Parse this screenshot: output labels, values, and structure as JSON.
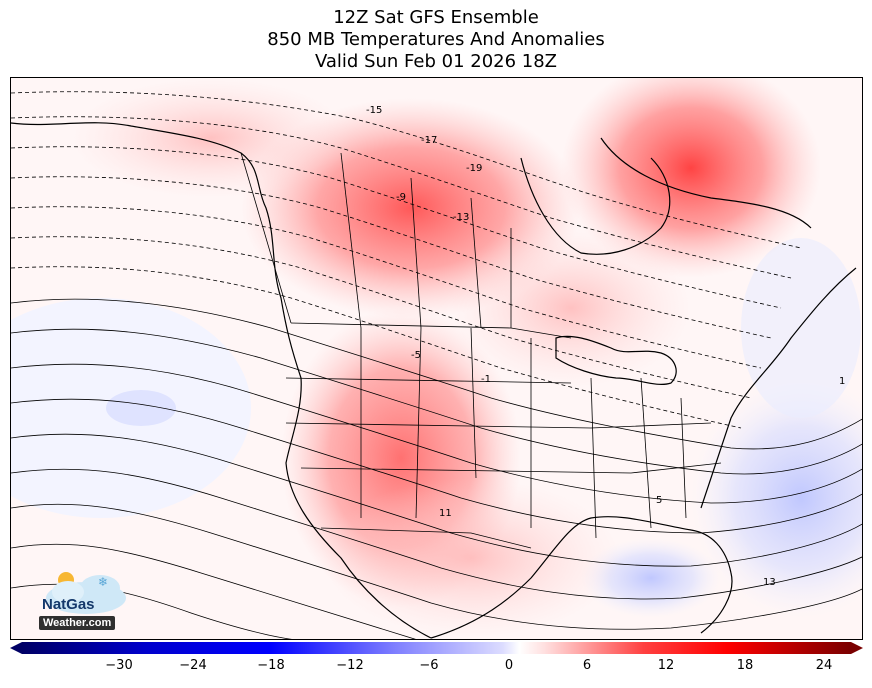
{
  "title": {
    "line1": "12Z Sat GFS Ensemble",
    "line2": "850 MB Temperatures And Anomalies",
    "line3": "Valid Sun Feb 01 2026 18Z"
  },
  "colorbar": {
    "min": -36,
    "max": 24,
    "ticks": [
      "−30",
      "−24",
      "−18",
      "−12",
      "−6",
      "0",
      "6",
      "12",
      "18",
      "24"
    ],
    "colors": {
      "cold_end": "#000066",
      "cold_mid": "#1a1aff",
      "neutral": "#ffffff",
      "warm_mid": "#ff2020",
      "warm_end": "#7a0000"
    }
  },
  "contour_labels": {
    "neg19": "-19",
    "neg17": "-17",
    "neg15": "-15",
    "neg13": "-13",
    "neg9": "-9",
    "neg5": "-5",
    "neg1": "-1",
    "pos1": "1",
    "pos5": "5",
    "pos11": "11",
    "pos13": "13"
  },
  "logo": {
    "brand": "NatGas",
    "site": "Weather.com"
  }
}
